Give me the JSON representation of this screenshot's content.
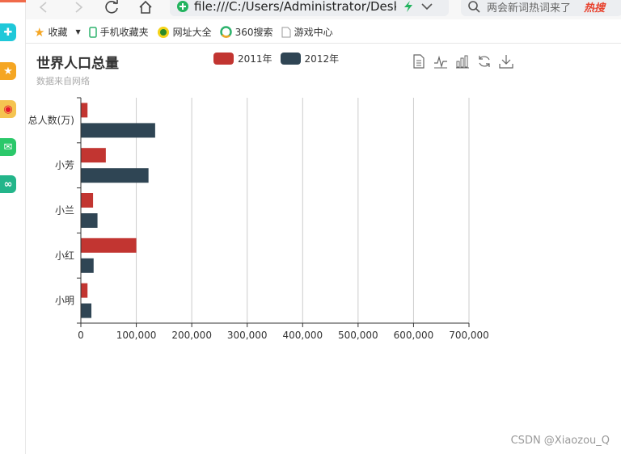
{
  "browser": {
    "address_text": "file:///C:/Users/Administrator/Desktop",
    "search_placeholder": "两会新词热词来了",
    "search_hot": "热搜",
    "bookmarks": [
      {
        "label": "收藏",
        "icon": "star-icon"
      },
      {
        "label": "手机收藏夹",
        "icon": "phone-icon"
      },
      {
        "label": "网址大全",
        "icon": "web-directory-icon"
      },
      {
        "label": "360搜索",
        "icon": "search-360-icon"
      },
      {
        "label": "游戏中心",
        "icon": "document-icon"
      }
    ],
    "sidebar_icons": [
      "plus-app-icon",
      "star-app-icon",
      "weibo-icon",
      "mail-icon",
      "link-app-icon"
    ]
  },
  "watermark": "CSDN @Xiaozou_Q",
  "colors": {
    "series_2011": "#c23531",
    "series_2012": "#2f4554",
    "grid_line": "#cccccc",
    "axis": "#333333"
  },
  "chart_data": {
    "type": "bar",
    "orientation": "horizontal",
    "title": "世界人口总量",
    "subtitle": "数据来自网络",
    "categories": [
      "总人数(万)",
      "小芳",
      "小兰",
      "小红",
      "小明"
    ],
    "category_display": [
      "总人数(万)",
      "小芳",
      "小兰",
      "小红",
      "小明"
    ],
    "series": [
      {
        "name": "2011年",
        "values": [
          12000,
          45000,
          22000,
          100000,
          12000
        ]
      },
      {
        "name": "2012年",
        "values": [
          134000,
          122000,
          30000,
          23000,
          19000
        ]
      }
    ],
    "xlim": [
      0,
      700000
    ],
    "xticks": [
      0,
      100000,
      200000,
      300000,
      400000,
      500000,
      600000,
      700000
    ],
    "xtick_labels": [
      "0",
      "100,000",
      "200,000",
      "300,000",
      "400,000",
      "500,000",
      "600,000",
      "700,000"
    ],
    "grid": true,
    "legend_position": "top-center",
    "toolbox": [
      "data-view-icon",
      "line-chart-icon",
      "bar-chart-icon",
      "restore-icon",
      "save-image-icon"
    ]
  }
}
